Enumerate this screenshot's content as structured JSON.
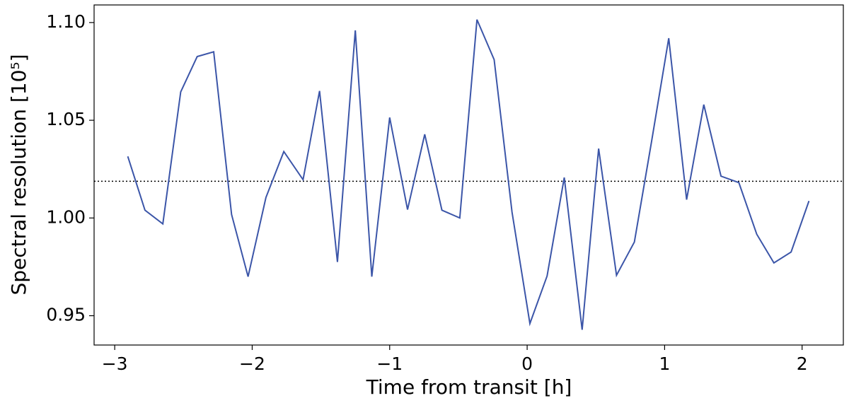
{
  "chart_data": {
    "type": "line",
    "x_label": "Time from transit [h]",
    "y_label": "Spectral resolution [10⁵]",
    "x": [
      -2.905,
      -2.78,
      -2.65,
      -2.52,
      -2.4,
      -2.28,
      -2.15,
      -2.03,
      -1.9,
      -1.77,
      -1.63,
      -1.51,
      -1.38,
      -1.25,
      -1.13,
      -1.0,
      -0.87,
      -0.745,
      -0.62,
      -0.49,
      -0.365,
      -0.24,
      -0.11,
      0.02,
      0.145,
      0.27,
      0.4,
      0.52,
      0.65,
      0.78,
      0.905,
      1.03,
      1.16,
      1.285,
      1.41,
      1.54,
      1.67,
      1.795,
      1.92,
      2.05
    ],
    "series": [
      {
        "color": "#3b55a8",
        "values": [
          1.0315,
          1.004,
          0.997,
          1.0645,
          1.0826,
          1.085,
          1.0018,
          0.97,
          1.0105,
          1.034,
          1.0196,
          1.065,
          0.9775,
          1.096,
          0.97,
          1.0514,
          1.0043,
          1.0428,
          1.004,
          1.0,
          1.1015,
          1.081,
          1.003,
          0.946,
          0.9703,
          1.0207,
          0.9428,
          1.0355,
          0.9707,
          0.9877,
          1.0391,
          1.092,
          1.0094,
          1.058,
          1.0214,
          1.0181,
          0.9917,
          0.977,
          0.9826,
          1.0087
        ]
      }
    ],
    "reference_line": 1.0188,
    "xlim": [
      -3.15,
      2.3
    ],
    "ylim": [
      0.935,
      1.109
    ],
    "xticks": [
      {
        "value": -3,
        "label": "−3"
      },
      {
        "value": -2,
        "label": "−2"
      },
      {
        "value": -1,
        "label": "−1"
      },
      0,
      1,
      2
    ],
    "yticks": [
      0.95,
      {
        "value": 1.0,
        "label": "1.00"
      },
      1.05,
      {
        "value": 1.1,
        "label": "1.10"
      }
    ]
  }
}
